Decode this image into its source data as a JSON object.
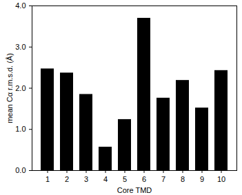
{
  "chart_data": {
    "type": "bar",
    "x_label": "Core TMD",
    "y_label": "mean Cα r.m.s.d. (Å)",
    "categories": [
      1,
      2,
      3,
      4,
      5,
      6,
      7,
      8,
      9,
      10
    ],
    "values": [
      2.47,
      2.37,
      1.85,
      0.57,
      1.24,
      3.7,
      1.76,
      2.19,
      1.52,
      2.43
    ],
    "color": "#000000",
    "ylim": [
      0,
      4
    ],
    "yticks": [
      0,
      1,
      2,
      3,
      4
    ],
    "grid": false
  }
}
